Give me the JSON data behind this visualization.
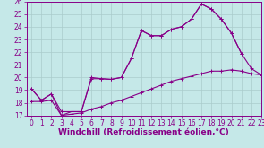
{
  "xlabel": "Windchill (Refroidissement éolien,°C)",
  "xlim": [
    -0.5,
    23
  ],
  "ylim": [
    17,
    26
  ],
  "xticks": [
    0,
    1,
    2,
    3,
    4,
    5,
    6,
    7,
    8,
    9,
    10,
    11,
    12,
    13,
    14,
    15,
    16,
    17,
    18,
    19,
    20,
    21,
    22,
    23
  ],
  "yticks": [
    17,
    18,
    19,
    20,
    21,
    22,
    23,
    24,
    25,
    26
  ],
  "background_color": "#c5e8e8",
  "grid_color": "#aacccc",
  "line_color": "#880088",
  "line1_x": [
    0,
    1,
    2,
    3,
    4,
    5,
    6,
    7,
    8,
    9,
    10,
    11,
    12,
    13,
    14,
    15,
    16,
    17,
    18,
    19,
    20,
    21,
    22,
    23
  ],
  "line1_y": [
    19.1,
    18.2,
    18.7,
    17.0,
    17.3,
    17.3,
    20.0,
    19.9,
    19.85,
    20.0,
    21.5,
    23.7,
    23.3,
    23.3,
    23.8,
    24.0,
    24.6,
    25.8,
    25.4,
    24.6,
    23.5,
    21.9,
    null,
    null
  ],
  "line2_x": [
    0,
    1,
    2,
    3,
    4,
    5,
    6,
    7,
    8,
    9,
    10,
    11,
    12,
    13,
    14,
    15,
    16,
    17,
    18,
    19,
    20,
    21,
    22,
    23
  ],
  "line2_y": [
    19.1,
    18.2,
    18.7,
    17.3,
    17.3,
    17.3,
    19.9,
    19.9,
    19.85,
    20.0,
    21.5,
    23.7,
    23.3,
    23.3,
    23.8,
    24.0,
    24.6,
    25.8,
    25.4,
    24.6,
    23.5,
    21.9,
    20.7,
    20.2
  ],
  "line3_x": [
    0,
    1,
    2,
    3,
    4,
    5,
    6,
    7,
    8,
    9,
    10,
    11,
    12,
    13,
    14,
    15,
    16,
    17,
    18,
    19,
    20,
    21,
    22,
    23
  ],
  "line3_y": [
    18.1,
    18.1,
    18.2,
    17.0,
    17.1,
    17.2,
    17.5,
    17.7,
    18.0,
    18.2,
    18.5,
    18.8,
    19.1,
    19.4,
    19.7,
    19.9,
    20.1,
    20.3,
    20.5,
    20.5,
    20.6,
    20.5,
    20.3,
    20.2
  ],
  "marker": "+",
  "markersize": 3,
  "linewidth": 0.8,
  "tick_fontsize": 5.5,
  "label_fontsize": 6.5
}
